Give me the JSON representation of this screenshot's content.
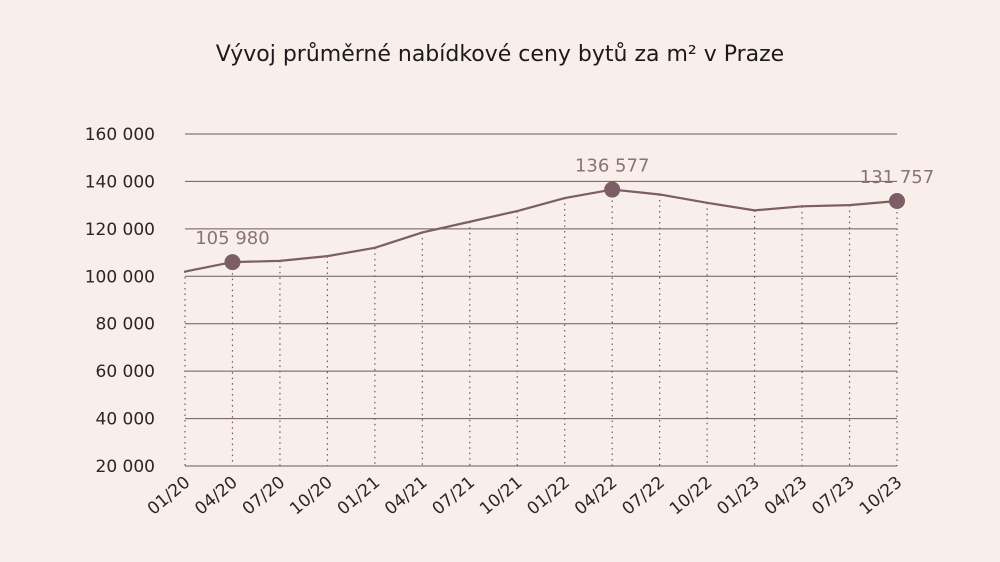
{
  "chart_data": {
    "type": "line",
    "title": "Vývoj průměrné nabídkové ceny bytů za m² v Praze",
    "xlabel": "",
    "ylabel": "",
    "categories": [
      "01/20",
      "04/20",
      "07/20",
      "10/20",
      "01/21",
      "04/21",
      "07/21",
      "10/21",
      "01/22",
      "04/22",
      "07/22",
      "10/22",
      "01/23",
      "04/23",
      "07/23",
      "10/23"
    ],
    "series": [
      {
        "values": [
          102000,
          105980,
          106500,
          108500,
          112000,
          118500,
          123000,
          127500,
          133000,
          136577,
          134500,
          131000,
          127800,
          129500,
          130000,
          131757
        ]
      }
    ],
    "highlighted_points": [
      {
        "category": "04/20",
        "label": "105 980"
      },
      {
        "category": "04/22",
        "label": "136 577"
      },
      {
        "category": "10/23",
        "label": "131 757"
      }
    ],
    "y_ticks": [
      "20 000",
      "40 000",
      "60 000",
      "80 000",
      "100 000",
      "120 000",
      "140 000",
      "160 000"
    ],
    "ylim": [
      20000,
      160000
    ],
    "grid": true,
    "colors": {
      "background": "#f8eeea",
      "line": "#7b5e66",
      "grid": "#6e5a5f",
      "label": "#8a7278"
    }
  }
}
